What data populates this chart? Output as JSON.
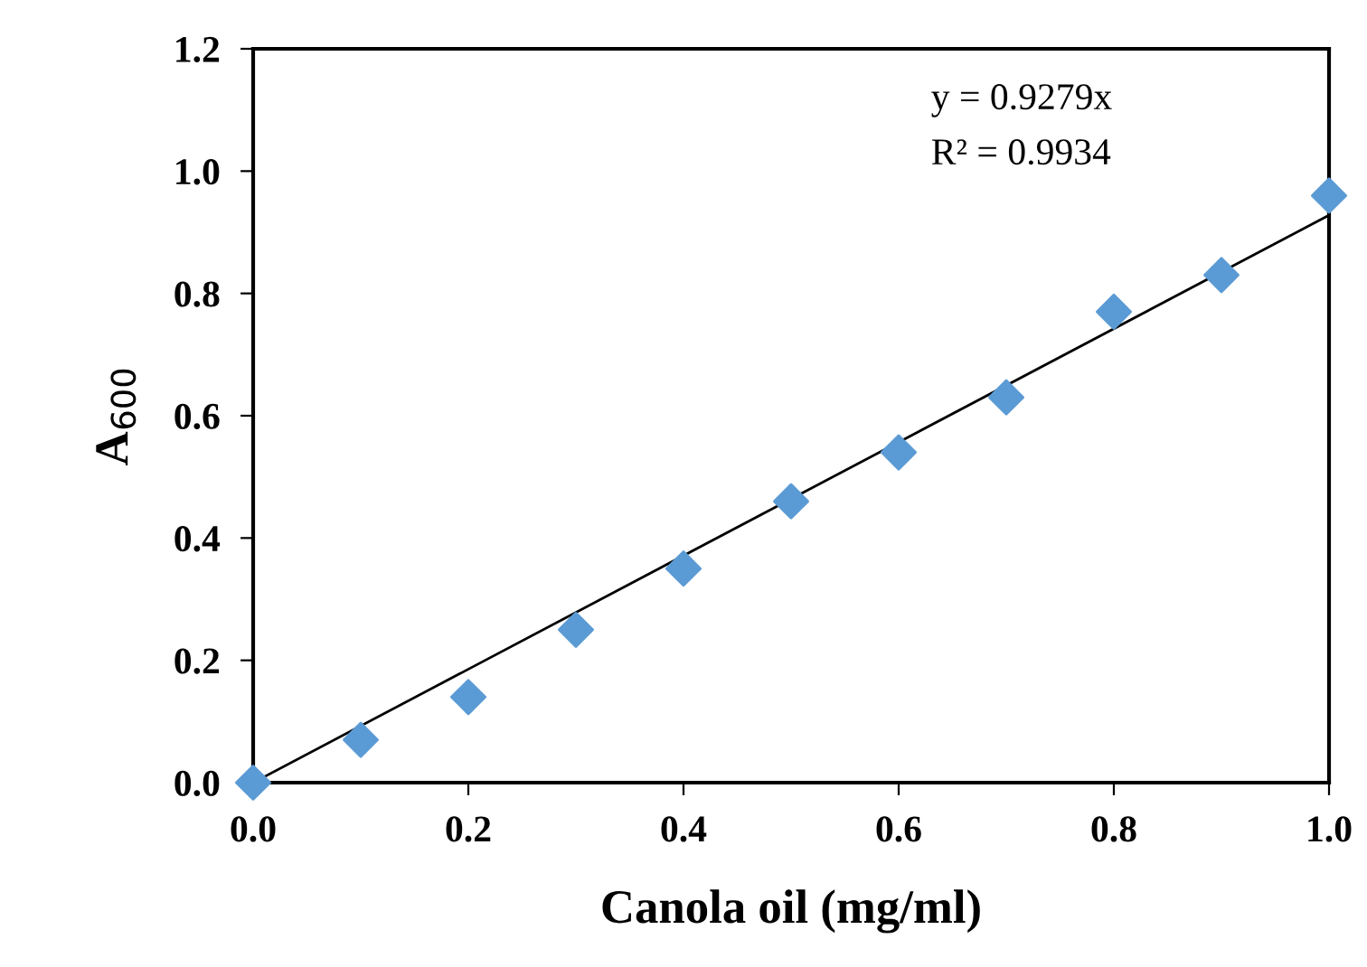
{
  "chart_data": {
    "type": "scatter",
    "xlabel": "Canola oil (mg/ml)",
    "ylabel": "A$_{600}$",
    "xlim": [
      0,
      1
    ],
    "ylim": [
      0,
      1.2
    ],
    "xticks": [
      {
        "value": 0,
        "label": "0.0"
      },
      {
        "value": 0.2,
        "label": "0.2"
      },
      {
        "value": 0.4,
        "label": "0.4"
      },
      {
        "value": 0.6,
        "label": "0.6"
      },
      {
        "value": 0.8,
        "label": "0.8"
      },
      {
        "value": 1,
        "label": "1.0"
      }
    ],
    "yticks": [
      {
        "value": 0,
        "label": "0.0"
      },
      {
        "value": 0.2,
        "label": "0.2"
      },
      {
        "value": 0.4,
        "label": "0.4"
      },
      {
        "value": 0.6,
        "label": "0.6"
      },
      {
        "value": 0.8,
        "label": "0.8"
      },
      {
        "value": 1,
        "label": "1.0"
      },
      {
        "value": 1.2,
        "label": "1.2"
      }
    ],
    "grid": false,
    "legend": false,
    "marker": "diamond",
    "series": [
      {
        "color": "#5b9bd5",
        "x": [
          0,
          0.1,
          0.2,
          0.3,
          0.4,
          0.5,
          0.6,
          0.7,
          0.8,
          0.9,
          1.0
        ],
        "values": [
          0,
          0.07,
          0.14,
          0.25,
          0.35,
          0.46,
          0.54,
          0.63,
          0.77,
          0.83,
          0.96
        ]
      },
      {
        "type": "line",
        "color": "#000000",
        "x": [
          0,
          1
        ],
        "values": [
          0,
          0.9279
        ],
        "marker": "none",
        "line_style": "solid"
      }
    ],
    "annotations": [
      "y = 0.9279x",
      "R² = 0.9934"
    ]
  }
}
